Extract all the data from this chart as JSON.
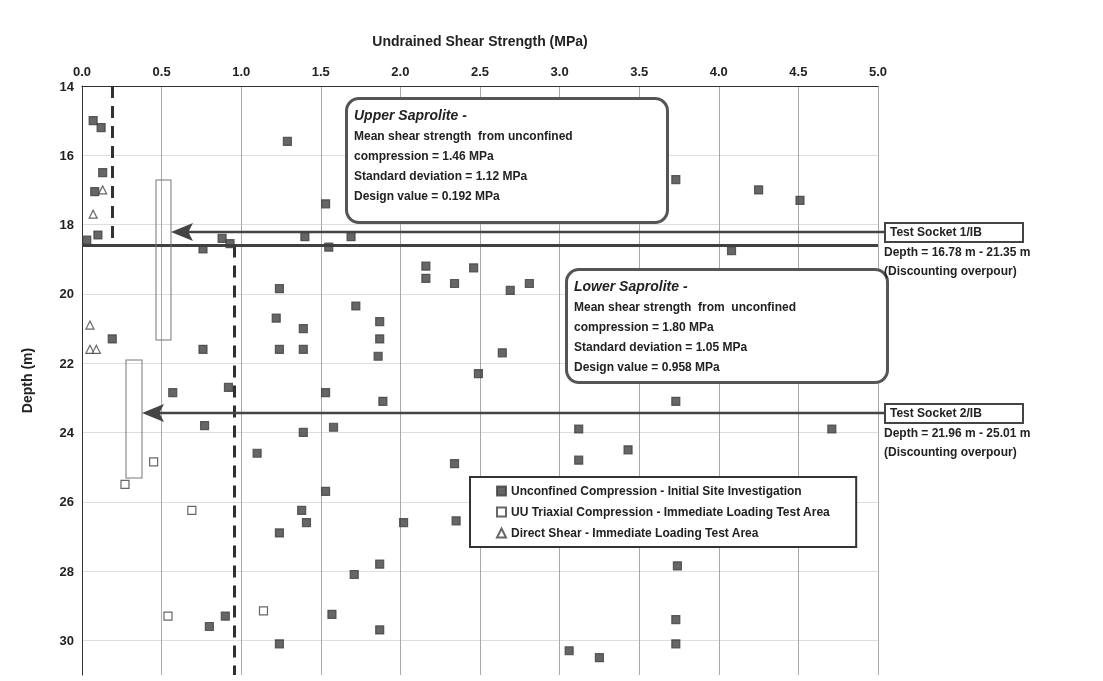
{
  "chart_data": {
    "type": "scatter",
    "xlabel": "Undrained Shear Strength (MPa)",
    "ylabel": "Depth (m)",
    "xlim": [
      0,
      5
    ],
    "xticks": [
      {
        "value": 0,
        "label": "0.0"
      },
      {
        "value": 0.5,
        "label": "0.5"
      },
      {
        "value": 1,
        "label": "1.0"
      },
      {
        "value": 1.5,
        "label": "1.5"
      },
      {
        "value": 2,
        "label": "2.0"
      },
      {
        "value": 2.5,
        "label": "2.5"
      },
      {
        "value": 3,
        "label": "3.0"
      },
      {
        "value": 3.5,
        "label": "3.5"
      },
      {
        "value": 4,
        "label": "4.0"
      },
      {
        "value": 4.5,
        "label": "4.5"
      },
      {
        "value": 5,
        "label": "5.0"
      }
    ],
    "ylim": [
      31,
      14
    ],
    "yticks": [
      14,
      16,
      18,
      20,
      22,
      24,
      26,
      28,
      30
    ],
    "grid": true,
    "legend": "bottom right",
    "series": [
      {
        "name": "Unconfined Compression - Initial Site Investigation",
        "color": "#404040",
        "marker": "square",
        "x": [
          0.07,
          0.12,
          0.13,
          0.08,
          0.1,
          0.03,
          1.29,
          1.53,
          0.88,
          1.4,
          1.69,
          0.76,
          0.93,
          1.55,
          1.24,
          1.72,
          1.22,
          1.39,
          0.19,
          0.76,
          1.24,
          1.39,
          0.57,
          1.53,
          0.92,
          2.16,
          2.16,
          2.46,
          2.34,
          2.69,
          2.81,
          1.87,
          1.87,
          1.86,
          2.64,
          2.49,
          1.89,
          3.73,
          3.73,
          4.25,
          4.51,
          4.08,
          4.71,
          3.12,
          3.43,
          3.12,
          2.34,
          2.02,
          2.35,
          3.74,
          1.87,
          1.71,
          1.87,
          3.73,
          3.73,
          3.06,
          3.25,
          0.77,
          1.39,
          1.58,
          1.1,
          1.53,
          1.38,
          1.41,
          1.24,
          0.9,
          0.8,
          1.24,
          1.57
        ],
        "values": [
          15.0,
          15.2,
          16.5,
          17.05,
          18.3,
          18.45,
          15.6,
          17.4,
          18.4,
          18.35,
          18.35,
          18.7,
          18.55,
          18.65,
          19.85,
          20.35,
          20.7,
          21.0,
          21.3,
          21.6,
          21.6,
          21.6,
          22.85,
          22.85,
          22.7,
          19.2,
          19.55,
          19.25,
          19.7,
          19.9,
          19.7,
          20.8,
          21.3,
          21.8,
          21.7,
          22.3,
          23.1,
          16.7,
          23.1,
          17.0,
          17.3,
          18.75,
          23.9,
          23.9,
          24.5,
          24.8,
          24.9,
          26.6,
          26.55,
          27.85,
          27.8,
          28.1,
          29.7,
          29.4,
          30.1,
          30.3,
          30.5,
          23.8,
          24.0,
          23.85,
          24.6,
          25.7,
          26.25,
          26.6,
          26.9,
          29.3,
          29.6,
          30.1,
          29.25
        ]
      },
      {
        "name": "UU Triaxial Compression - Immediate Loading Test Area",
        "color": "#ffffff",
        "marker": "square",
        "x": [
          0.45,
          0.27,
          0.69,
          0.54,
          1.14
        ],
        "values": [
          24.85,
          25.5,
          26.25,
          29.3,
          29.15
        ]
      },
      {
        "name": "Direct Shear - Immediate Loading Test Area",
        "color": "#ffffff",
        "marker": "triangle",
        "x": [
          0.13,
          0.07,
          0.05,
          0.05,
          0.09
        ],
        "values": [
          17.0,
          17.7,
          20.9,
          21.6,
          21.6
        ]
      }
    ],
    "ref_lines": [
      {
        "axis": "y",
        "value": 18.6,
        "color": "#404040",
        "line_style": "solid"
      },
      {
        "axis": "x",
        "value": 0.192,
        "color": "#303030",
        "line_style": "dashed"
      },
      {
        "axis": "x",
        "value": 0.958,
        "color": "#303030",
        "line_style": "dashed"
      }
    ],
    "annotations": [
      "Upper Saprolite -\nMean shear strength  from unconfined\ncompression = 1.46 MPa\nStandard deviation = 1.12 MPa\nDesign value = 0.192 MPa",
      "Lower Saprolite -\nMean shear strength  from  unconfined\ncompression = 1.80 MPa\nStandard deviation = 1.05 MPa\nDesign value = 0.958 MPa",
      "Test Socket 1/IB\nDepth = 16.78 m - 21.35 m\n(Discounting overpour)",
      "Test Socket 2/IB\nDepth = 21.96 m - 25.01 m\n(Discounting overpour)"
    ]
  }
}
